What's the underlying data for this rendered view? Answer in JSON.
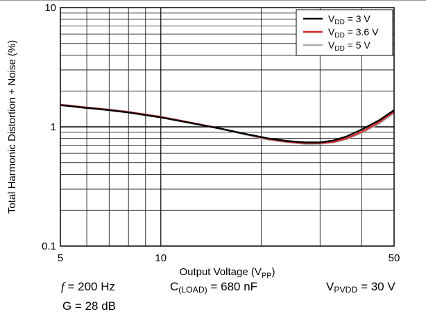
{
  "chart_data": {
    "type": "line",
    "title": "",
    "xlabel": {
      "main": "Output Voltage (V",
      "sub": "PP",
      "tail": ")"
    },
    "ylabel": "Total Harmonic Distortion + Noise (%)",
    "x_scale": "log",
    "y_scale": "log",
    "xlim": [
      5,
      50
    ],
    "ylim": [
      0.1,
      10
    ],
    "x_ticks": [
      "5",
      "10",
      "50"
    ],
    "y_ticks": [
      "0.1",
      "1",
      "10"
    ],
    "grid": true,
    "legend_position": "top-right",
    "series": [
      {
        "name": "3 V",
        "legend": {
          "main": "V",
          "sub": "DD",
          "tail": " = 3 V"
        },
        "color": "#000000",
        "x": [
          5,
          6,
          7,
          8,
          10,
          12,
          15,
          18,
          21,
          24,
          27,
          30,
          33,
          36,
          40,
          45,
          50
        ],
        "y": [
          1.52,
          1.44,
          1.38,
          1.32,
          1.2,
          1.09,
          0.97,
          0.87,
          0.8,
          0.76,
          0.74,
          0.74,
          0.77,
          0.83,
          0.95,
          1.13,
          1.38
        ]
      },
      {
        "name": "3.6 V",
        "legend": {
          "main": "V",
          "sub": "DD",
          "tail": " = 3.6 V"
        },
        "color": "#d62728",
        "x": [
          5,
          6,
          7,
          8,
          10,
          12,
          15,
          18,
          21,
          24,
          27,
          30,
          33,
          36,
          40,
          45,
          50
        ],
        "y": [
          1.53,
          1.45,
          1.39,
          1.33,
          1.21,
          1.1,
          0.97,
          0.87,
          0.79,
          0.75,
          0.73,
          0.73,
          0.75,
          0.8,
          0.91,
          1.09,
          1.34
        ]
      },
      {
        "name": "5 V",
        "legend": {
          "main": "V",
          "sub": "DD",
          "tail": " = 5 V"
        },
        "color": "#aaaaaa",
        "x": [
          5,
          6,
          7,
          8,
          10,
          12,
          15,
          18,
          21,
          24,
          27,
          30,
          33,
          36,
          40,
          45,
          50
        ],
        "y": [
          1.54,
          1.46,
          1.4,
          1.34,
          1.22,
          1.1,
          0.97,
          0.86,
          0.78,
          0.74,
          0.72,
          0.72,
          0.74,
          0.79,
          0.89,
          1.06,
          1.31
        ]
      }
    ]
  },
  "conditions": {
    "freq": {
      "f": "f",
      "rest": " = 200 Hz"
    },
    "load": {
      "main": "C",
      "sub": "(LOAD)",
      "tail": " = 680 nF"
    },
    "pvdd": {
      "main": "V",
      "sub": "PVDD",
      "tail": " = 30 V"
    },
    "gain": "G = 28 dB"
  }
}
